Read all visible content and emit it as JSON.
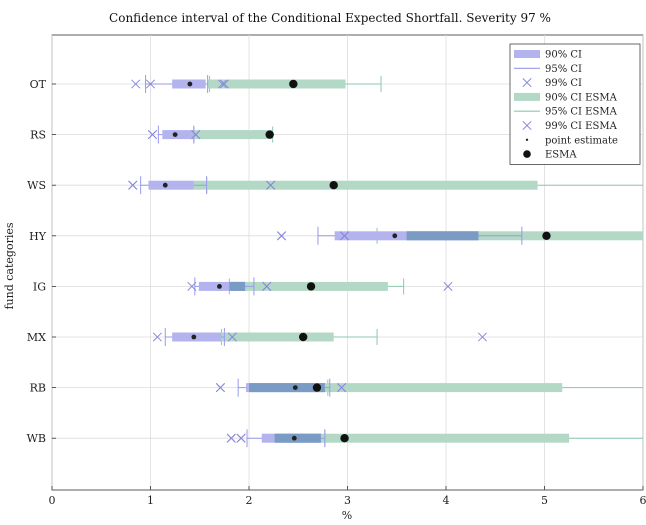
{
  "chart_data": {
    "type": "interval",
    "title": "Confidence interval of the Conditional Expected Shortfall. Severity 97 %",
    "xlabel": "%",
    "ylabel": "fund categories",
    "xlim": [
      0,
      6
    ],
    "xticks": [
      0,
      1,
      2,
      3,
      4,
      5,
      6
    ],
    "grid": true,
    "legend_position": "top-right",
    "colors": {
      "ci90": "#b3b3ee",
      "ci95": "#9999ee",
      "ci99": "#8888dd",
      "ci90_esma": "#b3d9c6",
      "ci95_esma": "#8cc9ab",
      "ci99_esma": "#8888dd",
      "overlap": "#7a9cc4",
      "point": "#222222",
      "esma": "#111111"
    },
    "legend": [
      {
        "key": "ci90",
        "label": "90% CI"
      },
      {
        "key": "ci95",
        "label": "95% CI"
      },
      {
        "key": "ci99",
        "label": "99% CI"
      },
      {
        "key": "ci90_esma",
        "label": "90% CI ESMA"
      },
      {
        "key": "ci95_esma",
        "label": "95% CI ESMA"
      },
      {
        "key": "ci99_esma",
        "label": "99% CI ESMA"
      },
      {
        "key": "point",
        "label": "point estimate"
      },
      {
        "key": "esma",
        "label": "ESMA"
      }
    ],
    "categories": [
      "OT",
      "RS",
      "WS",
      "HY",
      "IG",
      "MX",
      "RB",
      "WB"
    ],
    "series": [
      {
        "category": "OT",
        "point": 1.4,
        "ci90": [
          1.22,
          1.56
        ],
        "ci95": [
          0.95,
          1.58
        ],
        "ci99": [
          0.85,
          1.73
        ],
        "esma": 2.45,
        "ci90_esma": [
          1.58,
          2.98
        ],
        "ci95_esma": [
          1.6,
          3.34
        ],
        "ci99_esma": [
          1.0,
          1.75
        ]
      },
      {
        "category": "RS",
        "point": 1.25,
        "ci90": [
          1.12,
          1.44
        ],
        "ci95": [
          1.08,
          1.44
        ],
        "ci99": [
          1.02,
          1.46
        ],
        "esma": 2.21,
        "ci90_esma": [
          1.44,
          2.24
        ],
        "ci95_esma": [
          1.44,
          2.24
        ],
        "ci99_esma": [
          1.02,
          1.46
        ]
      },
      {
        "category": "WS",
        "point": 1.15,
        "ci90": [
          0.98,
          1.44
        ],
        "ci95": [
          0.9,
          1.57
        ],
        "ci99": [
          0.82,
          2.22
        ],
        "esma": 2.86,
        "ci90_esma": [
          1.44,
          4.93
        ],
        "ci95_esma": [
          1.57,
          6.0
        ],
        "ci99_esma": [
          0.82,
          2.22
        ]
      },
      {
        "category": "HY",
        "point": 3.48,
        "ci90": [
          2.87,
          4.33
        ],
        "ci95": [
          2.7,
          4.77
        ],
        "ci99": [
          2.33,
          2.97
        ],
        "esma": 5.02,
        "ci90_esma": [
          3.6,
          6.0
        ],
        "ci95_esma": [
          3.3,
          6.0
        ],
        "ci99_esma": [
          2.33,
          2.97
        ]
      },
      {
        "category": "IG",
        "point": 1.7,
        "ci90": [
          1.49,
          1.96
        ],
        "ci95": [
          1.45,
          2.05
        ],
        "ci99": [
          1.42,
          2.18
        ],
        "esma": 2.63,
        "ci90_esma": [
          1.8,
          3.41
        ],
        "ci95_esma": [
          1.8,
          3.57
        ],
        "ci99_esma": [
          2.18,
          4.02
        ]
      },
      {
        "category": "MX",
        "point": 1.44,
        "ci90": [
          1.22,
          1.72
        ],
        "ci95": [
          1.15,
          1.75
        ],
        "ci99": [
          1.07,
          1.83
        ],
        "esma": 2.55,
        "ci90_esma": [
          1.72,
          2.86
        ],
        "ci95_esma": [
          1.72,
          3.3
        ],
        "ci99_esma": [
          1.83,
          4.37
        ]
      },
      {
        "category": "RB",
        "point": 2.47,
        "ci90": [
          1.97,
          2.77
        ],
        "ci95": [
          1.89,
          2.82
        ],
        "ci99": [
          1.71,
          2.94
        ],
        "esma": 2.69,
        "ci90_esma": [
          2.0,
          5.18
        ],
        "ci95_esma": [
          2.8,
          6.0
        ],
        "ci99_esma": [
          1.71,
          2.94
        ]
      },
      {
        "category": "WB",
        "point": 2.46,
        "ci90": [
          2.13,
          2.73
        ],
        "ci95": [
          1.98,
          2.77
        ],
        "ci99": [
          1.82,
          1.92
        ],
        "esma": 2.97,
        "ci90_esma": [
          2.26,
          5.25
        ],
        "ci95_esma": [
          2.77,
          6.0
        ],
        "ci99_esma": [
          1.82,
          1.92
        ]
      }
    ]
  }
}
